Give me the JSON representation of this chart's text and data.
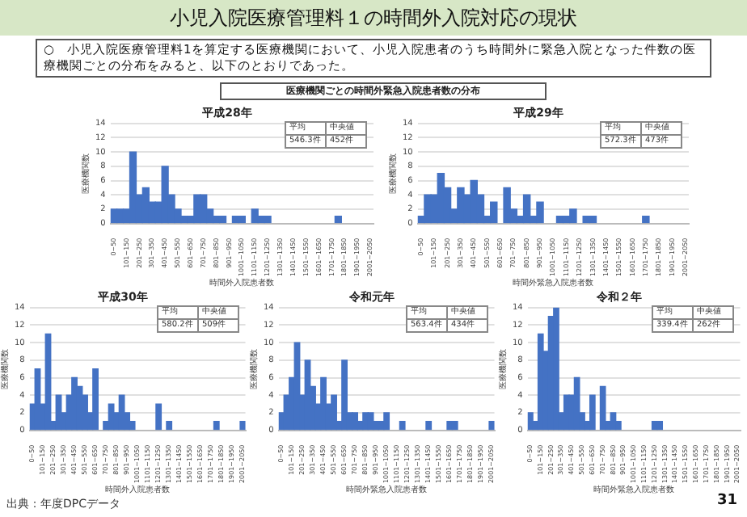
{
  "chart_data": [
    {
      "type": "other",
      "title": "小児入院医療管理料１の時間外入院対応の現状",
      "subtitle": "○　小児入院医療管理料1を算定する医療機関において、小児入院患者のうち時間外に緊急入院となった件数の医療機関ごとの分布をみると、以下のとおりであった。",
      "annotations": [
        "医療機関ごとの時間外緊急入院患者数の分布",
        "出典：年度DPCデータ",
        "31"
      ]
    },
    {
      "type": "bar",
      "title": "平成28年",
      "xlabel": "時間外入院患者数",
      "ylabel": "医療機関数",
      "color": "#4472c4",
      "ylim": [
        0,
        14
      ],
      "yticks": [
        0,
        2,
        4,
        6,
        8,
        10,
        12,
        14
      ],
      "grid": "y",
      "annotations": [
        "平均",
        "中央値",
        "546.3件",
        "452件"
      ],
      "categories": [
        "0~50",
        null,
        "101~150",
        null,
        "201~250",
        null,
        "301~350",
        null,
        "401~450",
        null,
        "501~550",
        null,
        "601~650",
        null,
        "701~750",
        null,
        "801~850",
        null,
        "901~950",
        null,
        "1001~1050",
        null,
        "1101~1150",
        null,
        "1201~1250",
        null,
        "1301~1350",
        null,
        "1401~1450",
        null,
        "1501~1550",
        null,
        "1601~1650",
        null,
        "1701~1750",
        null,
        "1801~1850",
        null,
        "1901~1950",
        null,
        "2001~2050"
      ],
      "values": [
        2,
        2,
        2,
        10,
        4,
        5,
        3,
        3,
        8,
        4,
        2,
        1,
        1,
        4,
        4,
        2,
        1,
        1,
        0,
        1,
        1,
        0,
        2,
        1,
        1,
        0,
        0,
        0,
        0,
        0,
        0,
        0,
        0,
        0,
        0,
        1,
        0,
        0,
        0,
        0,
        0
      ]
    },
    {
      "type": "bar",
      "title": "平成29年",
      "xlabel": "時間外緊急入院患者数",
      "ylabel": "医療機関数",
      "color": "#4472c4",
      "ylim": [
        0,
        14
      ],
      "yticks": [
        0,
        2,
        4,
        6,
        8,
        10,
        12,
        14
      ],
      "grid": "y",
      "annotations": [
        "平均",
        "中央値",
        "572.3件",
        "473件"
      ],
      "categories": [
        "0~50",
        null,
        "101~150",
        null,
        "201~250",
        null,
        "301~350",
        null,
        "401~450",
        null,
        "501~550",
        null,
        "601~650",
        null,
        "701~750",
        null,
        "801~850",
        null,
        "901~950",
        null,
        "1001~1050",
        null,
        "1101~1150",
        null,
        "1201~1250",
        null,
        "1301~1350",
        null,
        "1401~1450",
        null,
        "1501~1550",
        null,
        "1601~1650",
        null,
        "1701~1750",
        null,
        "1801~1850",
        null,
        "1901~1950",
        null,
        "2001~2050"
      ],
      "values": [
        1,
        4,
        4,
        7,
        5,
        2,
        5,
        4,
        6,
        4,
        1,
        3,
        0,
        5,
        2,
        1,
        4,
        1,
        3,
        0,
        0,
        1,
        1,
        2,
        0,
        1,
        1,
        0,
        0,
        0,
        0,
        0,
        0,
        0,
        1,
        0,
        0,
        0,
        0,
        0,
        0
      ]
    },
    {
      "type": "bar",
      "title": "平成30年",
      "xlabel": "時間外入院患者数",
      "ylabel": "医療機関数",
      "color": "#4472c4",
      "ylim": [
        0,
        14
      ],
      "yticks": [
        0,
        2,
        4,
        6,
        8,
        10,
        12,
        14
      ],
      "grid": "y",
      "annotations": [
        "平均",
        "中央値",
        "580.2件",
        "509件"
      ],
      "categories": [
        "0~50",
        null,
        "101~150",
        null,
        "201~250",
        null,
        "301~350",
        null,
        "401~450",
        null,
        "501~550",
        null,
        "601~650",
        null,
        "701~750",
        null,
        "801~850",
        null,
        "901~950",
        null,
        "1001~1050",
        null,
        "1101~1150",
        null,
        "1201~1250",
        null,
        "1301~1350",
        null,
        "1401~1450",
        null,
        "1501~1550",
        null,
        "1601~1650",
        null,
        "1701~1750",
        null,
        "1801~1850",
        null,
        "1901~1950",
        null,
        "2001~2050"
      ],
      "values": [
        3,
        7,
        3,
        11,
        1,
        4,
        2,
        4,
        6,
        5,
        4,
        2,
        7,
        0,
        1,
        3,
        2,
        4,
        2,
        1,
        0,
        0,
        0,
        0,
        3,
        0,
        1,
        0,
        0,
        0,
        0,
        0,
        0,
        0,
        0,
        1,
        0,
        0,
        0,
        0,
        1
      ]
    },
    {
      "type": "bar",
      "title": "令和元年",
      "xlabel": "時間外緊急入院患者数",
      "ylabel": "医療機関数",
      "color": "#4472c4",
      "ylim": [
        0,
        14
      ],
      "yticks": [
        0,
        2,
        4,
        6,
        8,
        10,
        12,
        14
      ],
      "grid": "y",
      "annotations": [
        "平均",
        "中央値",
        "563.4件",
        "434件"
      ],
      "categories": [
        "0~50",
        null,
        "101~150",
        null,
        "201~250",
        null,
        "301~350",
        null,
        "401~450",
        null,
        "501~550",
        null,
        "601~650",
        null,
        "701~750",
        null,
        "801~850",
        null,
        "901~950",
        null,
        "1001~1050",
        null,
        "1101~1150",
        null,
        "1201~1250",
        null,
        "1301~1350",
        null,
        "1401~1450",
        null,
        "1501~1550",
        null,
        "1601~1650",
        null,
        "1701~1750",
        null,
        "1801~1850",
        null,
        "1901~1950",
        null,
        "2001~2050"
      ],
      "values": [
        2,
        4,
        6,
        10,
        4,
        8,
        5,
        3,
        6,
        3,
        4,
        1,
        8,
        2,
        2,
        1,
        2,
        2,
        1,
        1,
        2,
        0,
        0,
        1,
        0,
        0,
        0,
        0,
        1,
        0,
        0,
        0,
        1,
        1,
        0,
        0,
        0,
        0,
        0,
        0,
        1
      ]
    },
    {
      "type": "bar",
      "title": "令和２年",
      "xlabel": "時間外緊急入院患者数",
      "ylabel": "医療機関数",
      "color": "#4472c4",
      "ylim": [
        0,
        14
      ],
      "yticks": [
        0,
        2,
        4,
        6,
        8,
        10,
        12,
        14
      ],
      "grid": "y",
      "annotations": [
        "平均",
        "中央値",
        "339.4件",
        "262件"
      ],
      "categories": [
        "0~50",
        null,
        "101~150",
        null,
        "201~250",
        null,
        "301~350",
        null,
        "401~450",
        null,
        "501~550",
        null,
        "601~650",
        null,
        "701~750",
        null,
        "801~850",
        null,
        "901~950",
        null,
        "1001~1050",
        null,
        "1101~1150",
        null,
        "1201~1250",
        null,
        "1301~1350",
        null,
        "1401~1450",
        null,
        "1501~1550",
        null,
        "1601~1650",
        null,
        "1701~1750",
        null,
        "1801~1850",
        null,
        "1901~1950",
        null,
        "2001~2050"
      ],
      "values": [
        2,
        1,
        11,
        9,
        13,
        14,
        2,
        4,
        4,
        6,
        2,
        1,
        4,
        0,
        5,
        1,
        2,
        1,
        0,
        0,
        0,
        0,
        0,
        0,
        1,
        1,
        0,
        0,
        0,
        0,
        0,
        0,
        0,
        0,
        0,
        0,
        0,
        0,
        0,
        0,
        0
      ]
    }
  ]
}
